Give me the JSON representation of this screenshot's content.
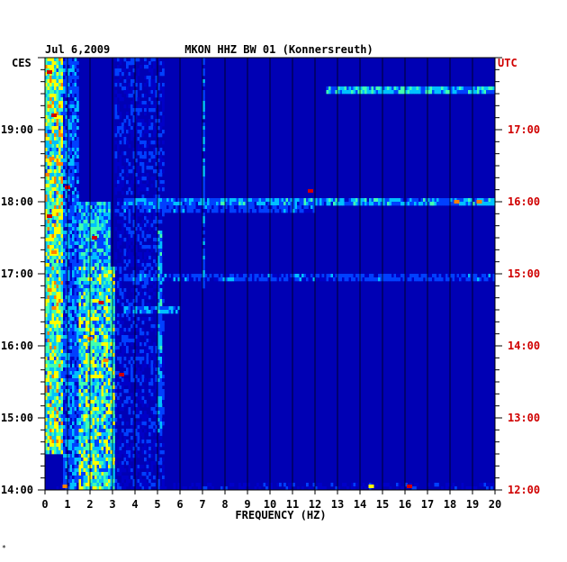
{
  "chart_data": {
    "type": "heatmap",
    "date": "Jul 6,2009",
    "title": "MKON HHZ BW 01 (Konnersreuth)",
    "left_tz": "CES",
    "right_tz": "UTC",
    "xlabel": "FREQUENCY (HZ)",
    "xlim": [
      0,
      20
    ],
    "x_ticks": [
      0,
      1,
      2,
      3,
      4,
      5,
      6,
      7,
      8,
      9,
      10,
      11,
      12,
      13,
      14,
      15,
      16,
      17,
      18,
      19,
      20
    ],
    "ces_range_hours": [
      14,
      20
    ],
    "left_ticks": [
      {
        "hour": 19,
        "label": "19:00"
      },
      {
        "hour": 18,
        "label": "18:00"
      },
      {
        "hour": 17,
        "label": "17:00"
      },
      {
        "hour": 16,
        "label": "16:00"
      },
      {
        "hour": 15,
        "label": "15:00"
      },
      {
        "hour": 14,
        "label": "14:00"
      }
    ],
    "right_ticks": [
      {
        "hour": 19,
        "label": "17:00"
      },
      {
        "hour": 18,
        "label": "16:00"
      },
      {
        "hour": 17,
        "label": "15:00"
      },
      {
        "hour": 16,
        "label": "14:00"
      },
      {
        "hour": 15,
        "label": "13:00"
      },
      {
        "hour": 14,
        "label": "12:00"
      }
    ],
    "colormap": [
      "#00007a",
      "#0000c8",
      "#0040ff",
      "#00c0ff",
      "#40ffb0",
      "#ffff00",
      "#ff8000",
      "#d00000"
    ],
    "background_color": "#0000b4",
    "energy_bands": [
      {
        "fmin": 0.0,
        "fmax": 0.8,
        "level": 0.62,
        "hours": [
          14.5,
          20
        ]
      },
      {
        "fmin": 0.8,
        "fmax": 1.5,
        "level": 0.35,
        "hours": [
          14,
          20
        ]
      },
      {
        "fmin": 1.5,
        "fmax": 3.1,
        "level": 0.55,
        "hours": [
          14,
          17.1
        ]
      },
      {
        "fmin": 1.5,
        "fmax": 2.9,
        "level": 0.45,
        "hours": [
          17.1,
          18.0
        ]
      },
      {
        "fmin": 3.1,
        "fmax": 5.3,
        "level": 0.22,
        "hours": [
          14,
          20
        ]
      },
      {
        "fmin": 5.0,
        "fmax": 5.2,
        "level": 0.4,
        "hours": [
          14.8,
          17.6
        ]
      },
      {
        "fmin": 7.0,
        "fmax": 7.1,
        "level": 0.35,
        "hours": [
          16.8,
          20
        ]
      }
    ],
    "hot_spots": [
      {
        "f": 0.2,
        "hour": 19.8,
        "level": 0.95
      },
      {
        "f": 0.4,
        "hour": 19.2,
        "level": 0.9
      },
      {
        "f": 0.3,
        "hour": 18.6,
        "level": 0.85
      },
      {
        "f": 1.0,
        "hour": 18.2,
        "level": 0.95
      },
      {
        "f": 0.2,
        "hour": 17.8,
        "level": 0.9
      },
      {
        "f": 0.4,
        "hour": 17.3,
        "level": 0.85
      },
      {
        "f": 2.2,
        "hour": 17.5,
        "level": 0.9
      },
      {
        "f": 2.5,
        "hour": 16.6,
        "level": 0.9
      },
      {
        "f": 2.0,
        "hour": 16.1,
        "level": 0.85
      },
      {
        "f": 2.7,
        "hour": 15.8,
        "level": 0.8
      },
      {
        "f": 3.4,
        "hour": 15.6,
        "level": 1.0
      },
      {
        "f": 11.8,
        "hour": 18.15,
        "level": 0.95
      },
      {
        "f": 18.3,
        "hour": 18.0,
        "level": 0.8
      },
      {
        "f": 19.3,
        "hour": 18.0,
        "level": 0.85
      },
      {
        "f": 16.2,
        "hour": 14.05,
        "level": 1.0
      },
      {
        "f": 0.9,
        "hour": 14.05,
        "level": 0.85
      },
      {
        "f": 14.5,
        "hour": 14.05,
        "level": 0.7
      }
    ],
    "horizontal_events": [
      {
        "hour": 19.55,
        "fmin": 12.5,
        "fmax": 20,
        "level": 0.45
      },
      {
        "hour": 18.0,
        "fmin": 3.5,
        "fmax": 20,
        "level": 0.4
      },
      {
        "hour": 17.9,
        "fmin": 3.5,
        "fmax": 12,
        "level": 0.3
      },
      {
        "hour": 16.95,
        "fmin": 3.5,
        "fmax": 20,
        "level": 0.3
      },
      {
        "hour": 16.5,
        "fmin": 3.5,
        "fmax": 6,
        "level": 0.35
      },
      {
        "hour": 14.05,
        "fmin": 0.5,
        "fmax": 20,
        "level": 0.2
      }
    ]
  },
  "footer_mark": "*"
}
